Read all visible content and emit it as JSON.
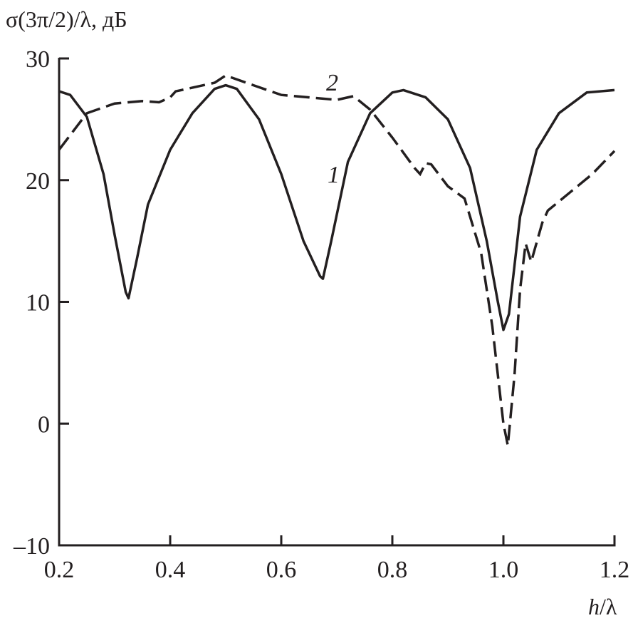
{
  "chart_data": {
    "type": "line",
    "title": "",
    "ylabel": "σ(3π/2)/λ, дБ",
    "xlabel_italic": "h",
    "xlabel_rest": "/λ",
    "xlim": [
      0.2,
      1.2
    ],
    "ylim": [
      -10,
      30
    ],
    "xticks": [
      "0.2",
      "0.4",
      "0.6",
      "0.8",
      "1.0",
      "1.2"
    ],
    "yticks": [
      "–10",
      "0",
      "10",
      "20",
      "30"
    ],
    "grid": false,
    "color": "#231f20",
    "series": [
      {
        "name": "1",
        "style": "solid",
        "x": [
          0.2,
          0.22,
          0.25,
          0.28,
          0.3,
          0.32,
          0.325,
          0.34,
          0.36,
          0.4,
          0.44,
          0.48,
          0.5,
          0.52,
          0.56,
          0.6,
          0.64,
          0.67,
          0.675,
          0.69,
          0.72,
          0.76,
          0.8,
          0.82,
          0.86,
          0.9,
          0.94,
          0.97,
          0.99,
          1.0,
          1.01,
          1.03,
          1.06,
          1.1,
          1.15,
          1.2
        ],
        "y": [
          27.3,
          27.0,
          25.2,
          20.5,
          15.5,
          10.8,
          10.3,
          13.5,
          18,
          22.5,
          25.5,
          27.5,
          27.8,
          27.5,
          25,
          20.5,
          15,
          12.1,
          11.9,
          15,
          21.5,
          25.5,
          27.2,
          27.4,
          26.8,
          25,
          21,
          15,
          10,
          7.7,
          9,
          17,
          22.5,
          25.5,
          27.2,
          27.4
        ]
      },
      {
        "name": "2",
        "style": "dashed",
        "x": [
          0.2,
          0.25,
          0.3,
          0.35,
          0.38,
          0.4,
          0.41,
          0.42,
          0.48,
          0.5,
          0.55,
          0.6,
          0.65,
          0.7,
          0.73,
          0.76,
          0.8,
          0.84,
          0.85,
          0.86,
          0.87,
          0.9,
          0.93,
          0.96,
          0.98,
          1.0,
          1.008,
          1.02,
          1.03,
          1.04,
          1.05,
          1.07,
          1.08,
          1.12,
          1.16,
          1.2
        ],
        "y": [
          22.5,
          25.5,
          26.3,
          26.5,
          26.4,
          26.8,
          27.3,
          27.4,
          28.0,
          28.6,
          27.8,
          27.0,
          26.8,
          26.6,
          26.9,
          25.8,
          23.5,
          21,
          20.5,
          21.4,
          21.3,
          19.5,
          18.5,
          14,
          8,
          0,
          -1.8,
          4,
          11,
          14.8,
          13.3,
          16.5,
          17.5,
          19,
          20.5,
          22.4
        ]
      }
    ]
  }
}
